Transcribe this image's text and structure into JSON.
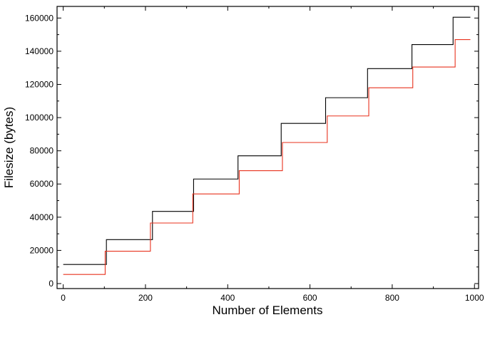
{
  "chart_data": {
    "type": "line",
    "xlabel": "Number of Elements",
    "ylabel": "Filesize (bytes)",
    "xlim": [
      -15,
      1010
    ],
    "ylim": [
      -3000,
      167000
    ],
    "x_ticks": [
      0,
      200,
      400,
      600,
      800,
      1000
    ],
    "y_ticks": [
      0,
      20000,
      40000,
      60000,
      80000,
      100000,
      120000,
      140000,
      160000
    ],
    "grid": false,
    "legend": "none",
    "series": [
      {
        "color": "#000000",
        "step_breaks": [
          0,
          105,
          217,
          317,
          425,
          530,
          638,
          740,
          848,
          948,
          990
        ],
        "values": [
          11500,
          26500,
          43500,
          63000,
          77000,
          96500,
          112000,
          129500,
          144000,
          160500
        ]
      },
      {
        "color": "#e8321e",
        "step_breaks": [
          0,
          102,
          212,
          315,
          428,
          533,
          642,
          743,
          850,
          953,
          990
        ],
        "values": [
          5500,
          19500,
          36500,
          54000,
          68000,
          85000,
          101000,
          118000,
          130500,
          147000
        ]
      }
    ]
  }
}
